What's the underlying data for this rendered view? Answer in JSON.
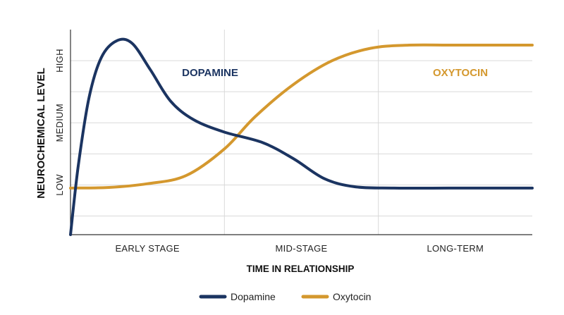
{
  "chart_data": {
    "type": "line",
    "title": "",
    "xlabel": "TIME IN RELATIONSHIP",
    "ylabel": "NEUROCHEMICAL LEVEL",
    "x_tick_labels": [
      "EARLY STAGE",
      "MID-STAGE",
      "LONG-TERM"
    ],
    "y_tick_labels": [
      "LOW",
      "MEDIUM",
      "HIGH"
    ],
    "y_tick_values": [
      1,
      2,
      3
    ],
    "xlim": [
      0,
      3
    ],
    "ylim": [
      0.2,
      3.5
    ],
    "grid": true,
    "legend_position": "bottom",
    "series": [
      {
        "name": "Dopamine",
        "color": "#1b3461",
        "annotation": "DOPAMINE",
        "points": [
          [
            0.0,
            0.2
          ],
          [
            0.05,
            1.3
          ],
          [
            0.12,
            2.4
          ],
          [
            0.2,
            3.05
          ],
          [
            0.3,
            3.32
          ],
          [
            0.4,
            3.28
          ],
          [
            0.52,
            2.85
          ],
          [
            0.65,
            2.35
          ],
          [
            0.8,
            2.05
          ],
          [
            1.0,
            1.85
          ],
          [
            1.25,
            1.68
          ],
          [
            1.45,
            1.42
          ],
          [
            1.65,
            1.1
          ],
          [
            1.85,
            0.97
          ],
          [
            2.1,
            0.95
          ],
          [
            2.5,
            0.95
          ],
          [
            3.0,
            0.95
          ]
        ]
      },
      {
        "name": "Oxytocin",
        "color": "#d4982e",
        "annotation": "OXYTOCIN",
        "points": [
          [
            0.0,
            0.95
          ],
          [
            0.25,
            0.96
          ],
          [
            0.5,
            1.02
          ],
          [
            0.75,
            1.15
          ],
          [
            1.0,
            1.58
          ],
          [
            1.2,
            2.1
          ],
          [
            1.45,
            2.62
          ],
          [
            1.7,
            3.0
          ],
          [
            1.95,
            3.2
          ],
          [
            2.2,
            3.25
          ],
          [
            2.5,
            3.25
          ],
          [
            3.0,
            3.25
          ]
        ]
      }
    ]
  }
}
